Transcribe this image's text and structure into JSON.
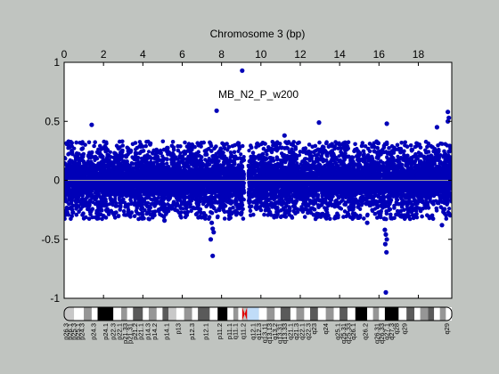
{
  "chart_data": {
    "type": "scatter",
    "title": "Chromosome 3 (bp)",
    "annotation": "MB_N2_P_w200",
    "x_tick_labels": [
      "0",
      "2",
      "4",
      "6",
      "8",
      "10",
      "12",
      "14",
      "16",
      "18"
    ],
    "y_tick_labels": [
      "1",
      "0.5",
      "0",
      "-0.5",
      "-1"
    ],
    "xlim": [
      0,
      19.7
    ],
    "ylim": [
      -1,
      1
    ],
    "grid": false,
    "point_color": "#0000b8",
    "baseline_color": "#9a9a9a",
    "gap": [
      9.15,
      9.35
    ],
    "band": {
      "low": -0.25,
      "high": 0.25,
      "spread_low": -0.35,
      "spread_high": 0.35
    },
    "points": [
      {
        "x": 9.05,
        "y": 0.93
      },
      {
        "x": 7.75,
        "y": 0.59
      },
      {
        "x": 19.5,
        "y": 0.58
      },
      {
        "x": 19.55,
        "y": 0.53
      },
      {
        "x": 12.95,
        "y": 0.49
      },
      {
        "x": 16.4,
        "y": 0.48
      },
      {
        "x": 19.5,
        "y": 0.5
      },
      {
        "x": 1.4,
        "y": 0.47
      },
      {
        "x": 18.95,
        "y": 0.45
      },
      {
        "x": 7.5,
        "y": -0.36
      },
      {
        "x": 7.55,
        "y": -0.41
      },
      {
        "x": 7.6,
        "y": -0.44
      },
      {
        "x": 7.45,
        "y": -0.5
      },
      {
        "x": 7.55,
        "y": -0.64
      },
      {
        "x": 16.3,
        "y": -0.42
      },
      {
        "x": 16.35,
        "y": -0.46
      },
      {
        "x": 16.4,
        "y": -0.5
      },
      {
        "x": 16.32,
        "y": -0.54
      },
      {
        "x": 16.38,
        "y": -0.61
      },
      {
        "x": 16.35,
        "y": -0.95
      },
      {
        "x": 19.2,
        "y": -0.38
      },
      {
        "x": 15.4,
        "y": -0.36
      },
      {
        "x": 5.1,
        "y": -0.34
      },
      {
        "x": 11.2,
        "y": 0.38
      }
    ]
  },
  "ideogram": {
    "bands": [
      {
        "start": 0.0,
        "end": 0.5,
        "stain": "gpos25"
      },
      {
        "start": 0.5,
        "end": 1.0,
        "stain": "gneg"
      },
      {
        "start": 1.0,
        "end": 1.4,
        "stain": "gpos50"
      },
      {
        "start": 1.4,
        "end": 1.7,
        "stain": "gneg"
      },
      {
        "start": 1.7,
        "end": 2.5,
        "stain": "gpos100"
      },
      {
        "start": 2.5,
        "end": 2.9,
        "stain": "gneg"
      },
      {
        "start": 2.9,
        "end": 3.2,
        "stain": "gpos50"
      },
      {
        "start": 3.2,
        "end": 3.5,
        "stain": "gneg"
      },
      {
        "start": 3.5,
        "end": 4.0,
        "stain": "gpos75"
      },
      {
        "start": 4.0,
        "end": 4.3,
        "stain": "gneg"
      },
      {
        "start": 4.3,
        "end": 4.7,
        "stain": "gpos50"
      },
      {
        "start": 4.7,
        "end": 5.0,
        "stain": "gneg"
      },
      {
        "start": 5.0,
        "end": 5.3,
        "stain": "gpos75"
      },
      {
        "start": 5.3,
        "end": 5.7,
        "stain": "gpos25"
      },
      {
        "start": 5.7,
        "end": 6.1,
        "stain": "gneg"
      },
      {
        "start": 6.1,
        "end": 6.5,
        "stain": "gpos50"
      },
      {
        "start": 6.5,
        "end": 6.8,
        "stain": "gneg"
      },
      {
        "start": 6.8,
        "end": 7.4,
        "stain": "gpos75"
      },
      {
        "start": 7.4,
        "end": 7.8,
        "stain": "gneg"
      },
      {
        "start": 7.8,
        "end": 8.3,
        "stain": "gpos100"
      },
      {
        "start": 8.3,
        "end": 8.6,
        "stain": "gneg"
      },
      {
        "start": 8.6,
        "end": 8.85,
        "stain": "gpos50"
      },
      {
        "start": 8.85,
        "end": 9.05,
        "stain": "gneg"
      },
      {
        "start": 9.05,
        "end": 9.3,
        "stain": "acen"
      },
      {
        "start": 9.3,
        "end": 9.9,
        "stain": "gvar"
      },
      {
        "start": 9.9,
        "end": 10.3,
        "stain": "gneg"
      },
      {
        "start": 10.3,
        "end": 10.7,
        "stain": "gpos50"
      },
      {
        "start": 10.7,
        "end": 11.0,
        "stain": "gneg"
      },
      {
        "start": 11.0,
        "end": 11.5,
        "stain": "gpos75"
      },
      {
        "start": 11.5,
        "end": 11.8,
        "stain": "gneg"
      },
      {
        "start": 11.8,
        "end": 12.2,
        "stain": "gpos50"
      },
      {
        "start": 12.2,
        "end": 12.5,
        "stain": "gneg"
      },
      {
        "start": 12.5,
        "end": 12.9,
        "stain": "gpos75"
      },
      {
        "start": 12.9,
        "end": 13.3,
        "stain": "gneg"
      },
      {
        "start": 13.3,
        "end": 13.7,
        "stain": "gpos50"
      },
      {
        "start": 13.7,
        "end": 14.0,
        "stain": "gneg"
      },
      {
        "start": 14.0,
        "end": 14.4,
        "stain": "gpos75"
      },
      {
        "start": 14.4,
        "end": 14.8,
        "stain": "gneg"
      },
      {
        "start": 14.8,
        "end": 15.4,
        "stain": "gpos100"
      },
      {
        "start": 15.4,
        "end": 15.7,
        "stain": "gneg"
      },
      {
        "start": 15.7,
        "end": 16.0,
        "stain": "gpos50"
      },
      {
        "start": 16.0,
        "end": 16.3,
        "stain": "gneg"
      },
      {
        "start": 16.3,
        "end": 17.0,
        "stain": "gpos100"
      },
      {
        "start": 17.0,
        "end": 17.4,
        "stain": "gneg"
      },
      {
        "start": 17.4,
        "end": 17.8,
        "stain": "gpos75"
      },
      {
        "start": 17.8,
        "end": 18.1,
        "stain": "gneg"
      },
      {
        "start": 18.1,
        "end": 18.5,
        "stain": "gpos50"
      },
      {
        "start": 18.5,
        "end": 18.8,
        "stain": "gpos75"
      },
      {
        "start": 18.8,
        "end": 19.1,
        "stain": "gneg"
      },
      {
        "start": 19.1,
        "end": 19.4,
        "stain": "gpos50"
      },
      {
        "start": 19.4,
        "end": 19.7,
        "stain": "gneg"
      }
    ],
    "labels": [
      {
        "x": 0.1,
        "text": "p26.3"
      },
      {
        "x": 0.3,
        "text": "p26.1"
      },
      {
        "x": 0.5,
        "text": "p25.3"
      },
      {
        "x": 0.7,
        "text": "p25.1"
      },
      {
        "x": 0.9,
        "text": "p24.3"
      },
      {
        "x": 1.5,
        "text": "p24.3"
      },
      {
        "x": 2.1,
        "text": "p24.1"
      },
      {
        "x": 2.5,
        "text": "p22.3"
      },
      {
        "x": 2.8,
        "text": "p22.1"
      },
      {
        "x": 3.1,
        "text": "p21.33"
      },
      {
        "x": 3.35,
        "text": "p21.31"
      },
      {
        "x": 3.6,
        "text": "p21.2"
      },
      {
        "x": 3.9,
        "text": "p21.1"
      },
      {
        "x": 4.25,
        "text": "p14.3"
      },
      {
        "x": 4.6,
        "text": "p14.2"
      },
      {
        "x": 5.2,
        "text": "p14.1"
      },
      {
        "x": 5.8,
        "text": "p13"
      },
      {
        "x": 6.5,
        "text": "p12.3"
      },
      {
        "x": 7.2,
        "text": "p12.1"
      },
      {
        "x": 7.9,
        "text": "p11.2"
      },
      {
        "x": 8.4,
        "text": "p11.1"
      },
      {
        "x": 8.7,
        "text": "q11.1"
      },
      {
        "x": 9.1,
        "text": "q11.2"
      },
      {
        "x": 9.6,
        "text": "q12.1"
      },
      {
        "x": 9.9,
        "text": "q12.3"
      },
      {
        "x": 10.2,
        "text": "q13.11"
      },
      {
        "x": 10.45,
        "text": "q13.13"
      },
      {
        "x": 10.7,
        "text": "q13.2"
      },
      {
        "x": 10.95,
        "text": "q13.31"
      },
      {
        "x": 11.2,
        "text": "q13.33"
      },
      {
        "x": 11.5,
        "text": "q21.1"
      },
      {
        "x": 11.8,
        "text": "q21.3"
      },
      {
        "x": 12.1,
        "text": "q22.1"
      },
      {
        "x": 12.4,
        "text": "q22.3"
      },
      {
        "x": 12.7,
        "text": "q23"
      },
      {
        "x": 13.3,
        "text": "q24"
      },
      {
        "x": 13.9,
        "text": "q25.1"
      },
      {
        "x": 14.2,
        "text": "q25.31"
      },
      {
        "x": 14.45,
        "text": "q25.33"
      },
      {
        "x": 14.7,
        "text": "q26.1"
      },
      {
        "x": 15.3,
        "text": "q26.2"
      },
      {
        "x": 15.9,
        "text": "q26.31"
      },
      {
        "x": 16.15,
        "text": "q26.33"
      },
      {
        "x": 16.4,
        "text": "q27.1"
      },
      {
        "x": 16.65,
        "text": "q27.3"
      },
      {
        "x": 16.9,
        "text": "q28"
      },
      {
        "x": 17.3,
        "text": "q29"
      },
      {
        "x": 19.45,
        "text": "q29"
      }
    ]
  }
}
